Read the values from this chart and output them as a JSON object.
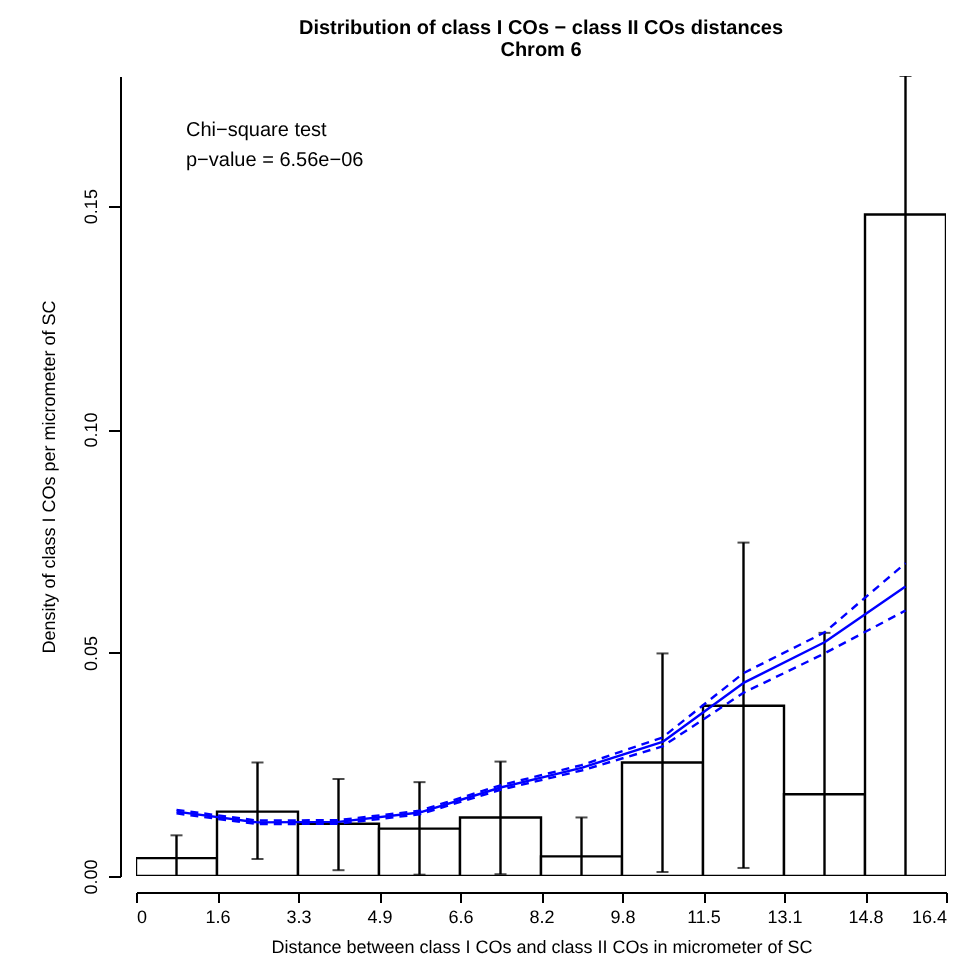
{
  "chart_data": {
    "type": "histogram",
    "title": "Distribution of class I COs − class II COs distances",
    "subtitle": "Chrom  6",
    "xlabel": "Distance between class I COs and class II COs in micrometer of SC",
    "ylabel": "Density of class I COs per micrometer of SC",
    "annotations": [
      "Chi−square test",
      "p−value =  6.56e−06"
    ],
    "bins": [
      0,
      1.64,
      3.28,
      4.92,
      6.56,
      8.2,
      9.84,
      11.48,
      13.12,
      14.76,
      16.4
    ],
    "values": [
      0.004,
      0.0144,
      0.0117,
      0.0106,
      0.0131,
      0.0044,
      0.0254,
      0.0381,
      0.0183,
      0.148
    ],
    "errors": [
      [
        0,
        0.0091
      ],
      [
        0.0038,
        0.0254
      ],
      [
        0.0013,
        0.0217
      ],
      [
        0.0003,
        0.021
      ],
      [
        0.0004,
        0.0256
      ],
      [
        0,
        0.0131
      ],
      [
        0.0009,
        0.0498
      ],
      [
        0.0018,
        0.0746
      ],
      [
        0,
        0.0544
      ],
      [
        0,
        0.179
      ]
    ],
    "color": "#ffffff",
    "series": [
      {
        "type": "line",
        "line_style": "solid",
        "color": "#0000ff",
        "x": [
          0.82,
          2.46,
          4.1,
          5.74,
          7.38,
          9.02,
          10.66,
          12.3,
          13.94,
          15.58
        ],
        "values": [
          0.0144,
          0.012,
          0.0121,
          0.0142,
          0.0198,
          0.0242,
          0.03,
          0.0432,
          0.0523,
          0.0648
        ]
      },
      {
        "type": "line",
        "line_style": "dashed",
        "color": "#0000ff",
        "x": [
          0.82,
          2.46,
          4.1,
          5.74,
          7.38,
          9.02,
          10.66,
          12.3,
          13.94,
          15.58
        ],
        "values": [
          0.0148,
          0.0124,
          0.0125,
          0.0146,
          0.0203,
          0.0248,
          0.031,
          0.0454,
          0.0545,
          0.07
        ]
      },
      {
        "type": "line",
        "line_style": "dashed",
        "color": "#0000ff",
        "x": [
          0.82,
          2.46,
          4.1,
          5.74,
          7.38,
          9.02,
          10.66,
          12.3,
          13.94,
          15.58
        ],
        "values": [
          0.014,
          0.0116,
          0.0117,
          0.0138,
          0.0193,
          0.0236,
          0.029,
          0.041,
          0.0498,
          0.0594
        ]
      }
    ],
    "xlim": [
      0,
      16.4
    ],
    "ylim": [
      0,
      0.179
    ],
    "xticks": [
      0,
      {
        "value": 1.64,
        "label": "1.6"
      },
      {
        "value": 3.28,
        "label": "3.3"
      },
      {
        "value": 4.92,
        "label": "4.9"
      },
      {
        "value": 6.56,
        "label": "6.6"
      },
      {
        "value": 8.2,
        "label": "8.2"
      },
      {
        "value": 9.84,
        "label": "9.8"
      },
      {
        "value": 11.48,
        "label": "11.5"
      },
      {
        "value": 13.12,
        "label": "13.1"
      },
      {
        "value": 14.76,
        "label": "14.8"
      },
      16.4
    ],
    "yticks": [
      {
        "value": 0,
        "label": "0.00"
      },
      {
        "value": 0.05,
        "label": "0.05"
      },
      {
        "value": 0.1,
        "label": "0.10"
      },
      {
        "value": 0.15,
        "label": "0.15"
      }
    ],
    "grid": false
  }
}
